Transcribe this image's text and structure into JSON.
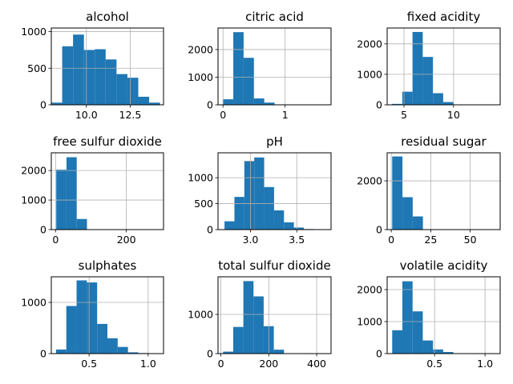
{
  "chart_data": [
    {
      "type": "bar",
      "title": "alcohol",
      "xlim": [
        8.0,
        14.4
      ],
      "ylim": [
        0,
        1050
      ],
      "xticks": [
        10.0,
        12.5
      ],
      "xtick_labels": [
        "10.0",
        "12.5"
      ],
      "yticks": [
        0,
        500,
        1000
      ],
      "ytick_labels": [
        "0",
        "500",
        "1000"
      ],
      "bin_edges": [
        8.0,
        8.62,
        9.24,
        9.86,
        10.48,
        11.1,
        11.72,
        12.34,
        12.96,
        13.58,
        14.2
      ],
      "values": [
        30,
        800,
        960,
        750,
        760,
        620,
        420,
        370,
        110,
        30
      ]
    },
    {
      "type": "bar",
      "title": "citric acid",
      "xlim": [
        -0.08,
        1.74
      ],
      "ylim": [
        0,
        2780
      ],
      "xticks": [
        0,
        1
      ],
      "xtick_labels": [
        "0",
        "1"
      ],
      "yticks": [
        0,
        1000,
        2000
      ],
      "ytick_labels": [
        "0",
        "1000",
        "2000"
      ],
      "bin_edges": [
        0.0,
        0.166,
        0.332,
        0.498,
        0.664,
        0.83,
        0.996,
        1.162,
        1.328,
        1.494,
        1.66
      ],
      "values": [
        200,
        2630,
        1700,
        230,
        80,
        5,
        0,
        0,
        0,
        5
      ]
    },
    {
      "type": "bar",
      "title": "fixed acidity",
      "xlim": [
        3.3,
        14.7
      ],
      "ylim": [
        0,
        2520
      ],
      "xticks": [
        5,
        10
      ],
      "xtick_labels": [
        "5",
        "10"
      ],
      "yticks": [
        0,
        1000,
        2000
      ],
      "ytick_labels": [
        "0",
        "1000",
        "2000"
      ],
      "bin_edges": [
        3.8,
        4.83,
        5.86,
        6.89,
        7.92,
        8.95,
        9.98,
        11.01,
        12.04,
        13.07,
        14.2
      ],
      "values": [
        30,
        430,
        2390,
        1570,
        380,
        90,
        10,
        0,
        0,
        0
      ]
    },
    {
      "type": "bar",
      "title": "free sulfur dioxide",
      "xlim": [
        -12,
        305
      ],
      "ylim": [
        0,
        2600
      ],
      "xticks": [
        0,
        200
      ],
      "xtick_labels": [
        "0",
        "200"
      ],
      "yticks": [
        0,
        1000,
        2000
      ],
      "ytick_labels": [
        "0",
        "1000",
        "2000"
      ],
      "bin_edges": [
        2.0,
        30.9,
        59.8,
        88.7,
        117.6,
        146.5,
        175.4,
        204.3,
        233.2,
        262.1,
        289.0
      ],
      "values": [
        2030,
        2450,
        360,
        10,
        2,
        0,
        0,
        0,
        0,
        1
      ]
    },
    {
      "type": "bar",
      "title": "pH",
      "xlim": [
        2.65,
        3.87
      ],
      "ylim": [
        0,
        1480
      ],
      "xticks": [
        3.0,
        3.5
      ],
      "xtick_labels": [
        "3.0",
        "3.5"
      ],
      "yticks": [
        0,
        500,
        1000
      ],
      "ytick_labels": [
        "0",
        "500",
        "1000"
      ],
      "bin_edges": [
        2.72,
        2.827,
        2.934,
        3.041,
        3.148,
        3.255,
        3.362,
        3.469,
        3.576,
        3.683,
        3.82
      ],
      "values": [
        160,
        630,
        1320,
        1390,
        820,
        370,
        140,
        40,
        10,
        5
      ]
    },
    {
      "type": "bar",
      "title": "residual sugar",
      "xlim": [
        -2.6,
        69.0
      ],
      "ylim": [
        0,
        3150
      ],
      "xticks": [
        0,
        25,
        50
      ],
      "xtick_labels": [
        "0",
        "25",
        "50"
      ],
      "yticks": [
        0,
        2000
      ],
      "ytick_labels": [
        "0",
        "2000"
      ],
      "bin_edges": [
        0.6,
        7.09,
        13.58,
        20.07,
        26.56,
        33.05,
        39.54,
        46.03,
        52.52,
        59.01,
        65.8
      ],
      "values": [
        3000,
        1330,
        540,
        10,
        2,
        0,
        0,
        0,
        0,
        1
      ]
    },
    {
      "type": "bar",
      "title": "sulphates",
      "xlim": [
        0.18,
        1.13
      ],
      "ylim": [
        0,
        1500
      ],
      "xticks": [
        0.5,
        1.0
      ],
      "xtick_labels": [
        "0.5",
        "1.0"
      ],
      "yticks": [
        0,
        1000
      ],
      "ytick_labels": [
        "0",
        "1000"
      ],
      "bin_edges": [
        0.22,
        0.307,
        0.394,
        0.481,
        0.568,
        0.655,
        0.742,
        0.829,
        0.916,
        1.003,
        1.08
      ],
      "values": [
        80,
        930,
        1430,
        1390,
        580,
        300,
        130,
        25,
        10,
        5
      ]
    },
    {
      "type": "bar",
      "title": "total sulfur dioxide",
      "xlim": [
        -12,
        460
      ],
      "ylim": [
        0,
        1960
      ],
      "xticks": [
        0,
        200,
        400
      ],
      "xtick_labels": [
        "0",
        "200",
        "400"
      ],
      "yticks": [
        0,
        1000
      ],
      "ytick_labels": [
        "0",
        "1000"
      ],
      "bin_edges": [
        9,
        51.4,
        93.8,
        136.2,
        178.6,
        221,
        263.4,
        305.8,
        348.2,
        390.6,
        440
      ],
      "values": [
        50,
        680,
        1850,
        1460,
        700,
        100,
        10,
        2,
        0,
        1
      ]
    },
    {
      "type": "bar",
      "title": "volatile acidity",
      "xlim": [
        0.03,
        1.15
      ],
      "ylim": [
        0,
        2400
      ],
      "xticks": [
        0.5,
        1.0
      ],
      "xtick_labels": [
        "0.5",
        "1.0"
      ],
      "yticks": [
        0,
        1000,
        2000
      ],
      "ytick_labels": [
        "0",
        "1000",
        "2000"
      ],
      "bin_edges": [
        0.08,
        0.181,
        0.282,
        0.383,
        0.484,
        0.585,
        0.686,
        0.787,
        0.888,
        0.989,
        1.1
      ],
      "values": [
        730,
        2260,
        1320,
        410,
        130,
        50,
        10,
        5,
        2,
        2
      ]
    }
  ]
}
